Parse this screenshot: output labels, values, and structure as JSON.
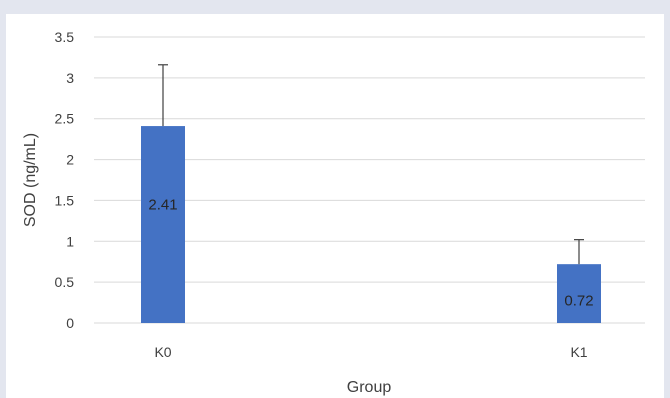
{
  "chart_data": {
    "type": "bar",
    "categories": [
      "K0",
      "K1"
    ],
    "values": [
      2.41,
      0.72
    ],
    "error_bars_upper": [
      0.75,
      0.3
    ],
    "data_labels": [
      "2.41",
      "0.72"
    ],
    "title": "",
    "xlabel": "Group",
    "ylabel": "SOD (ng/mL)",
    "ylim": [
      0,
      3.5
    ],
    "yticks": [
      0,
      0.5,
      1,
      1.5,
      2,
      2.5,
      3,
      3.5
    ],
    "ytick_labels": [
      "0",
      "0.5",
      "1",
      "1.5",
      "2",
      "2.5",
      "3",
      "3.5"
    ],
    "grid": true,
    "legend": "none",
    "colors": {
      "bar": "#4472c4",
      "gridline": "#d9d9d9",
      "error_bar": "#404040",
      "text": "#404040",
      "page_background": "#e3e6ef",
      "plot_background": "#ffffff"
    }
  }
}
